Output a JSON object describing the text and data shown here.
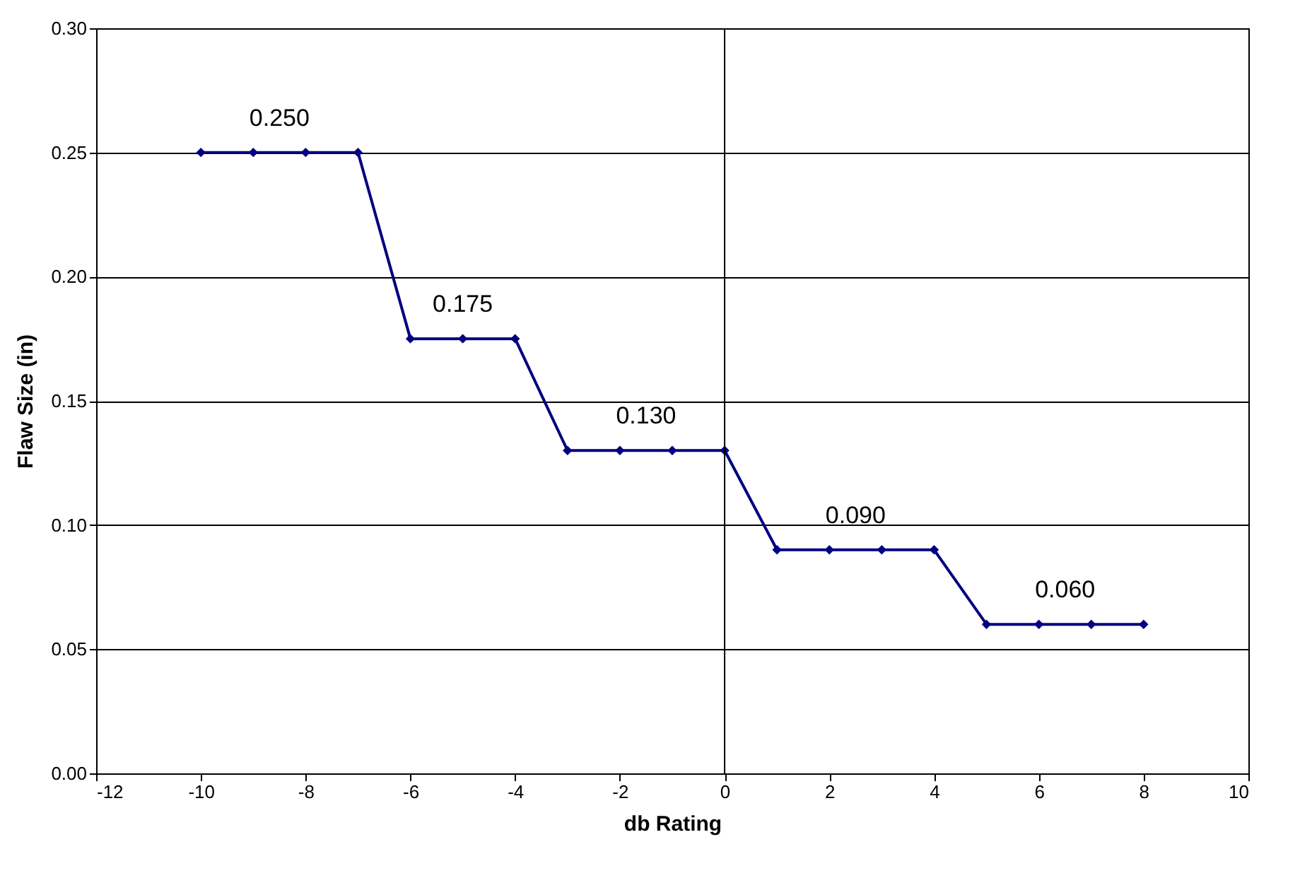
{
  "chart_data": {
    "type": "line",
    "xlabel": "db Rating",
    "ylabel": "Flaw Size (in)",
    "x": [
      -10,
      -9,
      -8,
      -7,
      -6,
      -5,
      -4,
      -3,
      -2,
      -1,
      0,
      1,
      2,
      3,
      4,
      5,
      6,
      7,
      8
    ],
    "series": [
      {
        "color": "#000080",
        "values": [
          0.25,
          0.25,
          0.25,
          0.25,
          0.175,
          0.175,
          0.175,
          0.13,
          0.13,
          0.13,
          0.13,
          0.09,
          0.09,
          0.09,
          0.09,
          0.06,
          0.06,
          0.06,
          0.06
        ]
      }
    ],
    "xlim": [
      -12,
      10
    ],
    "xticks": [
      -12,
      -10,
      -8,
      -6,
      -4,
      -2,
      0,
      2,
      4,
      6,
      8,
      10
    ],
    "ylim": [
      0,
      0.3
    ],
    "yticks": [
      {
        "value": 0,
        "label": "0.00"
      },
      {
        "value": 0.05,
        "label": "0.05"
      },
      {
        "value": 0.1,
        "label": "0.10"
      },
      {
        "value": 0.15,
        "label": "0.15"
      },
      {
        "value": 0.2,
        "label": "0.20"
      },
      {
        "value": 0.25,
        "label": "0.25"
      },
      {
        "value": 0.3,
        "label": "0.30"
      }
    ],
    "ref_lines": [
      {
        "axis": "x",
        "value": 0,
        "color": "#000000"
      }
    ],
    "annotations": [
      {
        "text": "0.250",
        "x": -8.5,
        "y": 0.25
      },
      {
        "text": "0.175",
        "x": -5,
        "y": 0.175
      },
      {
        "text": "0.130",
        "x": -1.5,
        "y": 0.13
      },
      {
        "text": "0.090",
        "x": 2.5,
        "y": 0.09
      },
      {
        "text": "0.060",
        "x": 6.5,
        "y": 0.06
      }
    ],
    "grid": "y",
    "marker": "diamond",
    "line_style": "solid"
  }
}
